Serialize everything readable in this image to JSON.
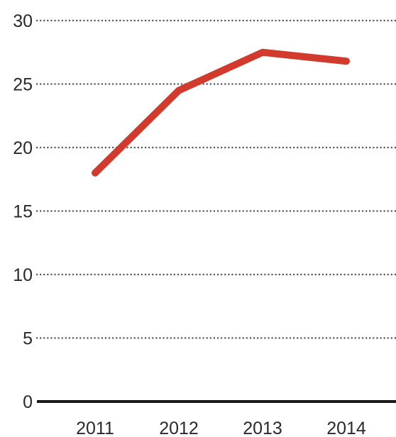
{
  "chart_data": {
    "type": "line",
    "title": "",
    "xlabel": "",
    "ylabel": "",
    "categories": [
      "2011",
      "2012",
      "2013",
      "2014"
    ],
    "series": [
      {
        "values": [
          18,
          24.5,
          27.5,
          26.8
        ],
        "color": "#d23a2d"
      }
    ],
    "ylim": [
      0,
      30
    ],
    "yticks": [
      "0",
      "5",
      "10",
      "15",
      "20",
      "25",
      "30"
    ],
    "grid": true,
    "legend": "none"
  }
}
